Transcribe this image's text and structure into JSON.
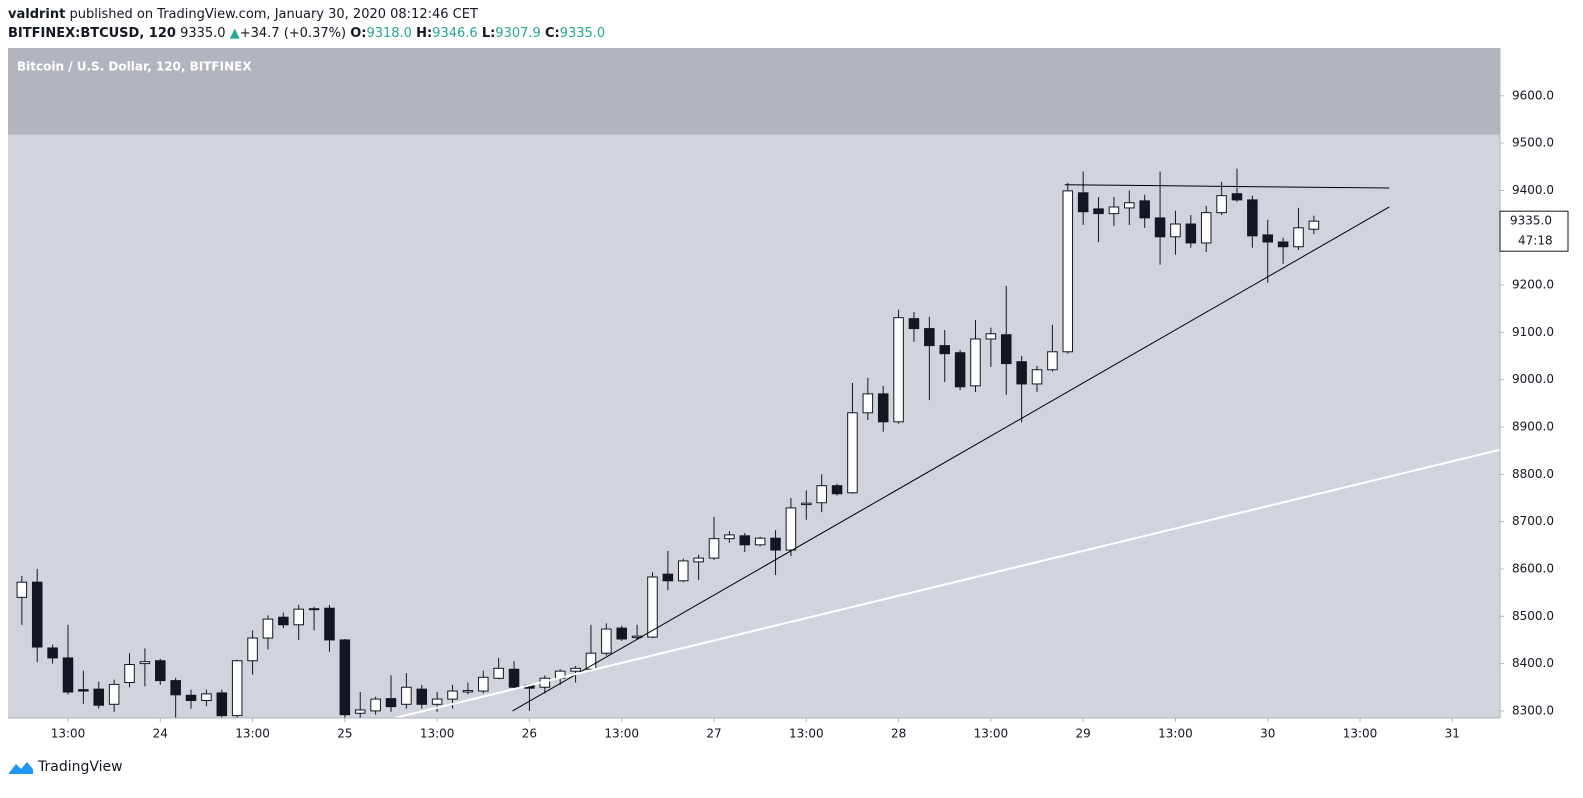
{
  "header": {
    "author": "valdrint",
    "published": "published on TradingView.com, January 30, 2020 08:12:46 CET",
    "symbol": "BITFINEX:BTCUSD, 120",
    "last": "9335.0",
    "arrow": "▲",
    "change": "+34.7 (+0.37%)",
    "o_label": "O:",
    "o": "9318.0",
    "h_label": "H:",
    "h": "9346.6",
    "l_label": "L:",
    "l": "9307.9",
    "c_label": "C:",
    "c": "9335.0"
  },
  "footer": "TradingView",
  "chart_data": {
    "type": "candlestick",
    "title": "Bitcoin / U.S. Dollar, 120, BITFINEX",
    "categories": [
      null,
      null,
      null,
      null,
      null,
      null,
      null,
      null,
      null,
      null,
      null,
      null,
      null,
      null,
      null,
      null,
      null,
      null,
      null,
      null,
      null,
      null,
      null,
      null,
      null,
      null,
      null,
      null,
      null,
      null,
      null,
      null,
      null,
      null,
      null,
      null,
      null,
      null,
      null,
      null,
      null,
      null,
      null,
      null,
      null,
      null,
      null,
      null,
      null,
      null,
      null,
      null,
      null,
      null,
      null,
      null,
      null,
      null,
      null,
      null,
      null,
      null,
      null,
      null,
      null,
      null,
      null,
      null,
      null,
      null,
      null,
      null,
      null,
      null,
      null,
      null,
      null,
      null,
      null,
      null,
      null,
      null,
      null,
      null,
      null
    ],
    "open": [
      8540,
      8572,
      8433,
      8412,
      8345,
      8346,
      8314,
      8360,
      8400,
      8406,
      8364,
      8333,
      8322,
      8338,
      8290,
      8406,
      8454,
      8498,
      8482,
      8516,
      8517,
      8450,
      8295,
      8300,
      8326,
      8314,
      8346,
      8314,
      8325,
      8340,
      8342,
      8369,
      8388,
      8354,
      8350,
      8369,
      8384,
      8388,
      8422,
      8475,
      8455,
      8456,
      8589,
      8575,
      8615,
      8623,
      8664,
      8670,
      8651,
      8665,
      8640,
      8736,
      8740,
      8776,
      8761,
      8930,
      8970,
      8911,
      9129,
      9108,
      9072,
      9057,
      8987,
      9086,
      9095,
      9038,
      8991,
      9021,
      9059,
      9395,
      9361,
      9351,
      9363,
      9378,
      9342,
      9302,
      9329,
      9289,
      9353,
      9393,
      9380,
      9306,
      9291,
      9281,
      9318.0
    ],
    "high": [
      8585,
      8600,
      8440,
      8482,
      8385,
      8362,
      8366,
      8422,
      8432,
      8410,
      8370,
      8345,
      8345,
      8345,
      8408,
      8470,
      8502,
      8508,
      8524,
      8520,
      8524,
      8452,
      8340,
      8330,
      8375,
      8380,
      8355,
      8340,
      8355,
      8360,
      8385,
      8412,
      8405,
      8357,
      8375,
      8388,
      8395,
      8482,
      8485,
      8480,
      8482,
      8593,
      8638,
      8622,
      8630,
      8710,
      8680,
      8676,
      8668,
      8682,
      8750,
      8766,
      8800,
      8780,
      8993,
      9004,
      8987,
      9148,
      9143,
      9133,
      9105,
      9063,
      9126,
      9110,
      9198,
      9050,
      9029,
      9116,
      9416,
      9440,
      9386,
      9386,
      9400,
      9391,
      9440,
      9357,
      9348,
      9367,
      9418,
      9446,
      9389,
      9338,
      9300,
      9363,
      9346.6
    ],
    "low": [
      8482,
      8403,
      8400,
      8335,
      8315,
      8305,
      8298,
      8350,
      8352,
      8355,
      8285,
      8305,
      8310,
      8285,
      8285,
      8377,
      8430,
      8475,
      8450,
      8470,
      8425,
      8285,
      8285,
      8292,
      8298,
      8305,
      8305,
      8298,
      8305,
      8335,
      8337,
      8367,
      8346,
      8300,
      8337,
      8355,
      8360,
      8384,
      8417,
      8448,
      8450,
      8454,
      8555,
      8572,
      8577,
      8619,
      8655,
      8636,
      8648,
      8587,
      8627,
      8704,
      8720,
      8755,
      8759,
      8915,
      8890,
      8907,
      9080,
      8957,
      8995,
      8978,
      8974,
      9027,
      8968,
      8910,
      8974,
      9017,
      9055,
      9327,
      9291,
      9325,
      9327,
      9321,
      9243,
      9264,
      9279,
      9270,
      9348,
      9376,
      9279,
      9205,
      9245,
      9274,
      9307.9
    ],
    "close": [
      8572,
      8435,
      8412,
      8340,
      8342,
      8312,
      8356,
      8398,
      8404,
      8364,
      8334,
      8322,
      8336,
      8290,
      8406,
      8454,
      8494,
      8482,
      8515,
      8514,
      8450,
      8292,
      8302,
      8325,
      8309,
      8350,
      8314,
      8325,
      8342,
      8343,
      8371,
      8390,
      8350,
      8348,
      8369,
      8384,
      8390,
      8422,
      8473,
      8452,
      8458,
      8583,
      8575,
      8617,
      8623,
      8664,
      8672,
      8651,
      8665,
      8640,
      8729,
      8739,
      8776,
      8759,
      8930,
      8970,
      8911,
      9131,
      9108,
      9072,
      9055,
      8985,
      9086,
      9097,
      9034,
      8991,
      9021,
      9059,
      9399,
      9355,
      9351,
      9365,
      9374,
      9342,
      9302,
      9329,
      9289,
      9353,
      9389,
      9380,
      9304,
      9291,
      9281,
      9321,
      9335.0
    ],
    "up_color": "#ffffff",
    "down_color": "#131722",
    "wick_color": "#131722",
    "xlim": [
      -0.9,
      96.1
    ],
    "xticks": [
      {
        "value": 3,
        "label": "13:00"
      },
      {
        "value": 9,
        "label": "24"
      },
      {
        "value": 15,
        "label": "13:00"
      },
      {
        "value": 21,
        "label": "25"
      },
      {
        "value": 27,
        "label": "13:00"
      },
      {
        "value": 33,
        "label": "26"
      },
      {
        "value": 39,
        "label": "13:00"
      },
      {
        "value": 45,
        "label": "27"
      },
      {
        "value": 51,
        "label": "13:00"
      },
      {
        "value": 57,
        "label": "28"
      },
      {
        "value": 63,
        "label": "13:00"
      },
      {
        "value": 69,
        "label": "29"
      },
      {
        "value": 75,
        "label": "13:00"
      },
      {
        "value": 81,
        "label": "30"
      },
      {
        "value": 87,
        "label": "13:00"
      },
      {
        "value": 93,
        "label": "31"
      }
    ],
    "ylim": [
      8285,
      9701
    ],
    "yticks": [
      {
        "value": 8300,
        "label": "8300.0"
      },
      {
        "value": 8400,
        "label": "8400.0"
      },
      {
        "value": 8500,
        "label": "8500.0"
      },
      {
        "value": 8600,
        "label": "8600.0"
      },
      {
        "value": 8700,
        "label": "8700.0"
      },
      {
        "value": 8800,
        "label": "8800.0"
      },
      {
        "value": 8900,
        "label": "8900.0"
      },
      {
        "value": 9000,
        "label": "9000.0"
      },
      {
        "value": 9100,
        "label": "9100.0"
      },
      {
        "value": 9200,
        "label": "9200.0"
      },
      {
        "value": 9300,
        "label": "9300.0"
      },
      {
        "value": 9400,
        "label": "9400.0"
      },
      {
        "value": 9500,
        "label": "9500.0"
      },
      {
        "value": 9600,
        "label": "9600.0"
      }
    ],
    "zone_low": 9518,
    "zone_color": "#b2b5bd",
    "background": "#d1d4dc",
    "last_price": {
      "value": 9335.0,
      "label": "9335.0"
    },
    "countdown": "47:18",
    "trendlines": [
      {
        "x": [
          31.9,
          88.9
        ],
        "y": [
          8300,
          9365
        ],
        "color": "#000000"
      },
      {
        "x": [
          67.8,
          88.9
        ],
        "y": [
          9412,
          9405
        ],
        "color": "#000000"
      },
      {
        "x": [
          24.25,
          96.1
        ],
        "y": [
          8285,
          8852
        ],
        "color": "#ffffff"
      }
    ]
  }
}
